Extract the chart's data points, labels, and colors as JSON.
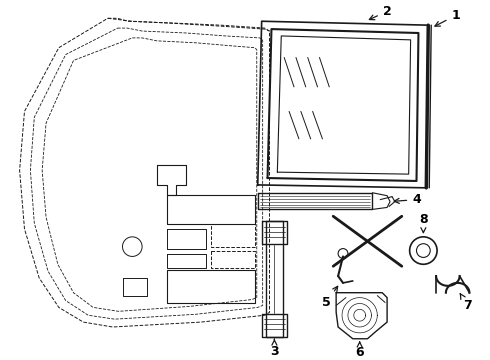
{
  "background_color": "#ffffff",
  "line_color": "#1a1a1a",
  "figsize": [
    4.9,
    3.6
  ],
  "dpi": 100
}
